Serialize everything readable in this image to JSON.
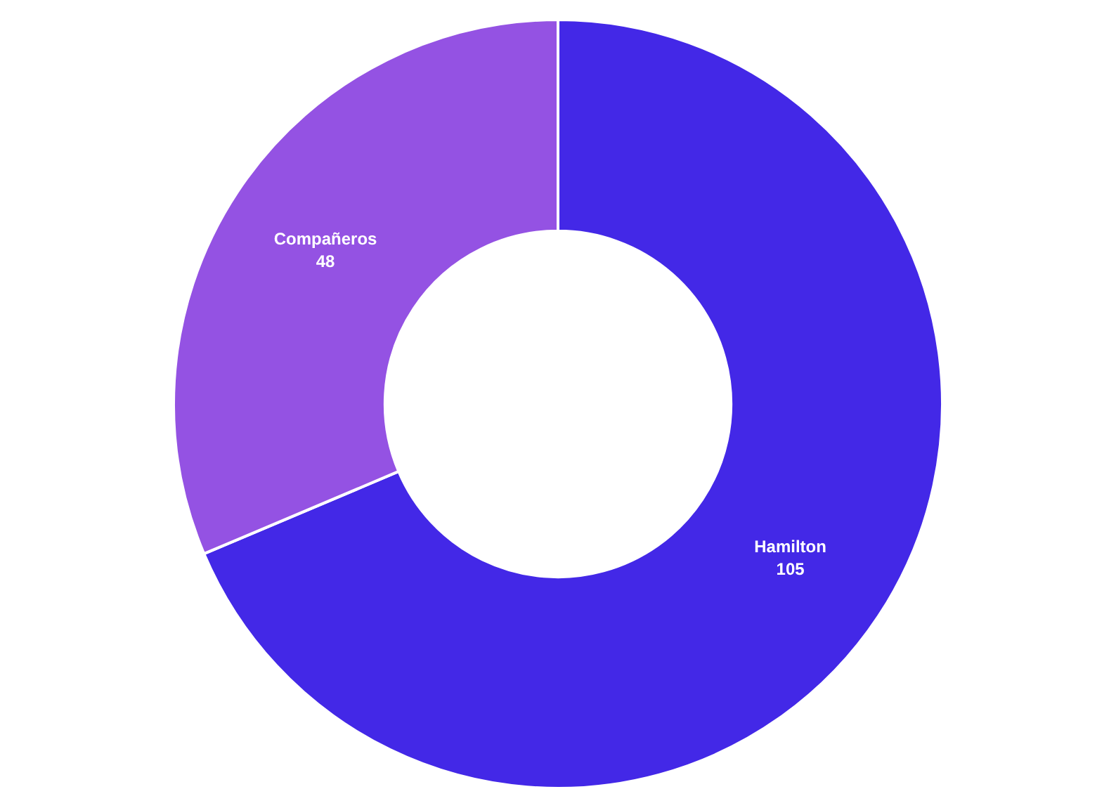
{
  "chart_data": {
    "type": "donut",
    "categories": [
      "Hamilton",
      "Compañeros"
    ],
    "values": [
      105,
      48
    ],
    "colors": [
      "#4328e7",
      "#9452e3"
    ],
    "data_labels": true,
    "legend": false
  }
}
